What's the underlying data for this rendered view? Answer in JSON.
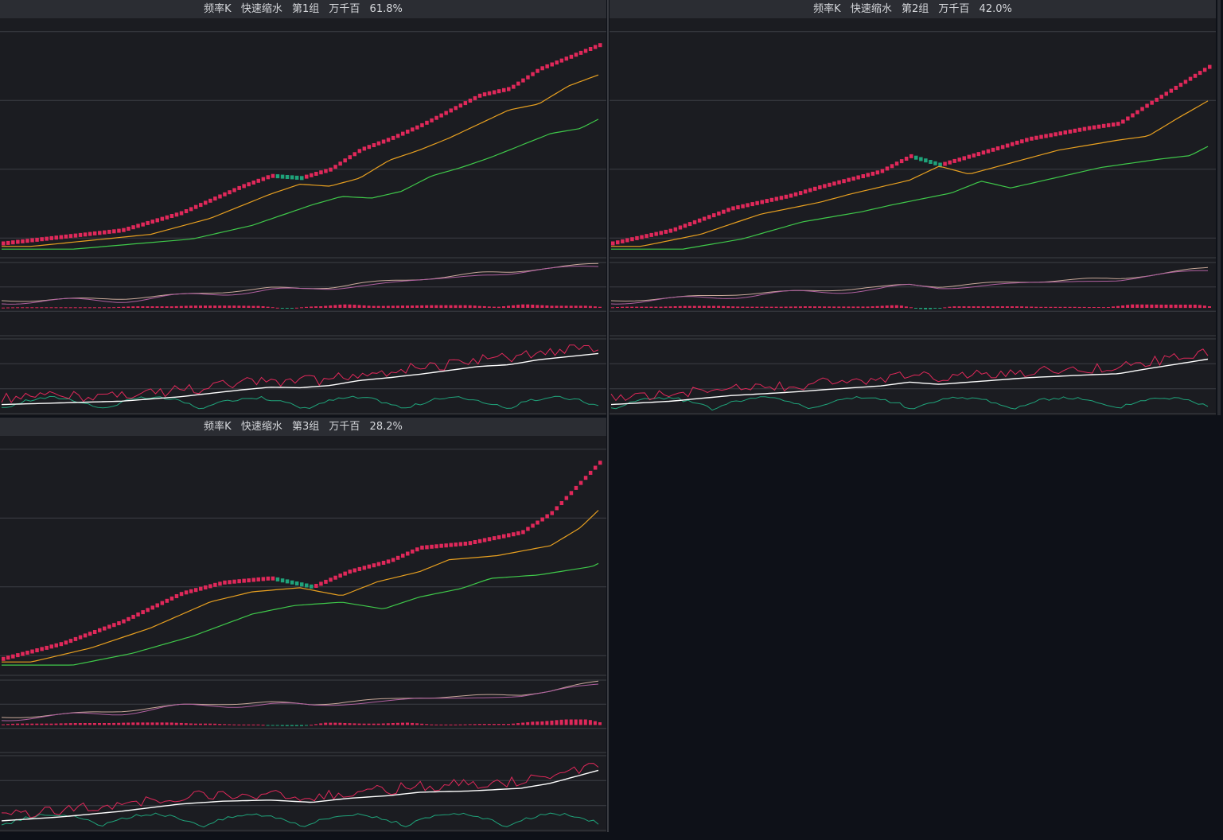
{
  "panels": [
    {
      "title": {
        "name": "频率K",
        "mode": "快速缩水",
        "group": "第1组",
        "unit": "万千百",
        "pct": "61.8%"
      },
      "profile": "p1"
    },
    {
      "title": {
        "name": "频率K",
        "mode": "快速缩水",
        "group": "第2组",
        "unit": "万千百",
        "pct": "42.0%"
      },
      "profile": "p2"
    },
    {
      "title": {
        "name": "频率K",
        "mode": "快速缩水",
        "group": "第3组",
        "unit": "万千百",
        "pct": "28.2%"
      },
      "profile": "p3"
    }
  ],
  "colors": {
    "background": "#1b1c21",
    "title_bar": "#2b2d33",
    "up_candle": "#e0285a",
    "down_candle": "#1fa37a",
    "ma_short": "#e8a020",
    "ma_long": "#3fc94a",
    "dif_line": "#c9a99a",
    "dea_line": "#b060a0",
    "kdj_k": "#ffffff",
    "kdj_d": "#e0285a",
    "kdj_j": "#1fa37a",
    "grid": "#3d3f45"
  }
}
